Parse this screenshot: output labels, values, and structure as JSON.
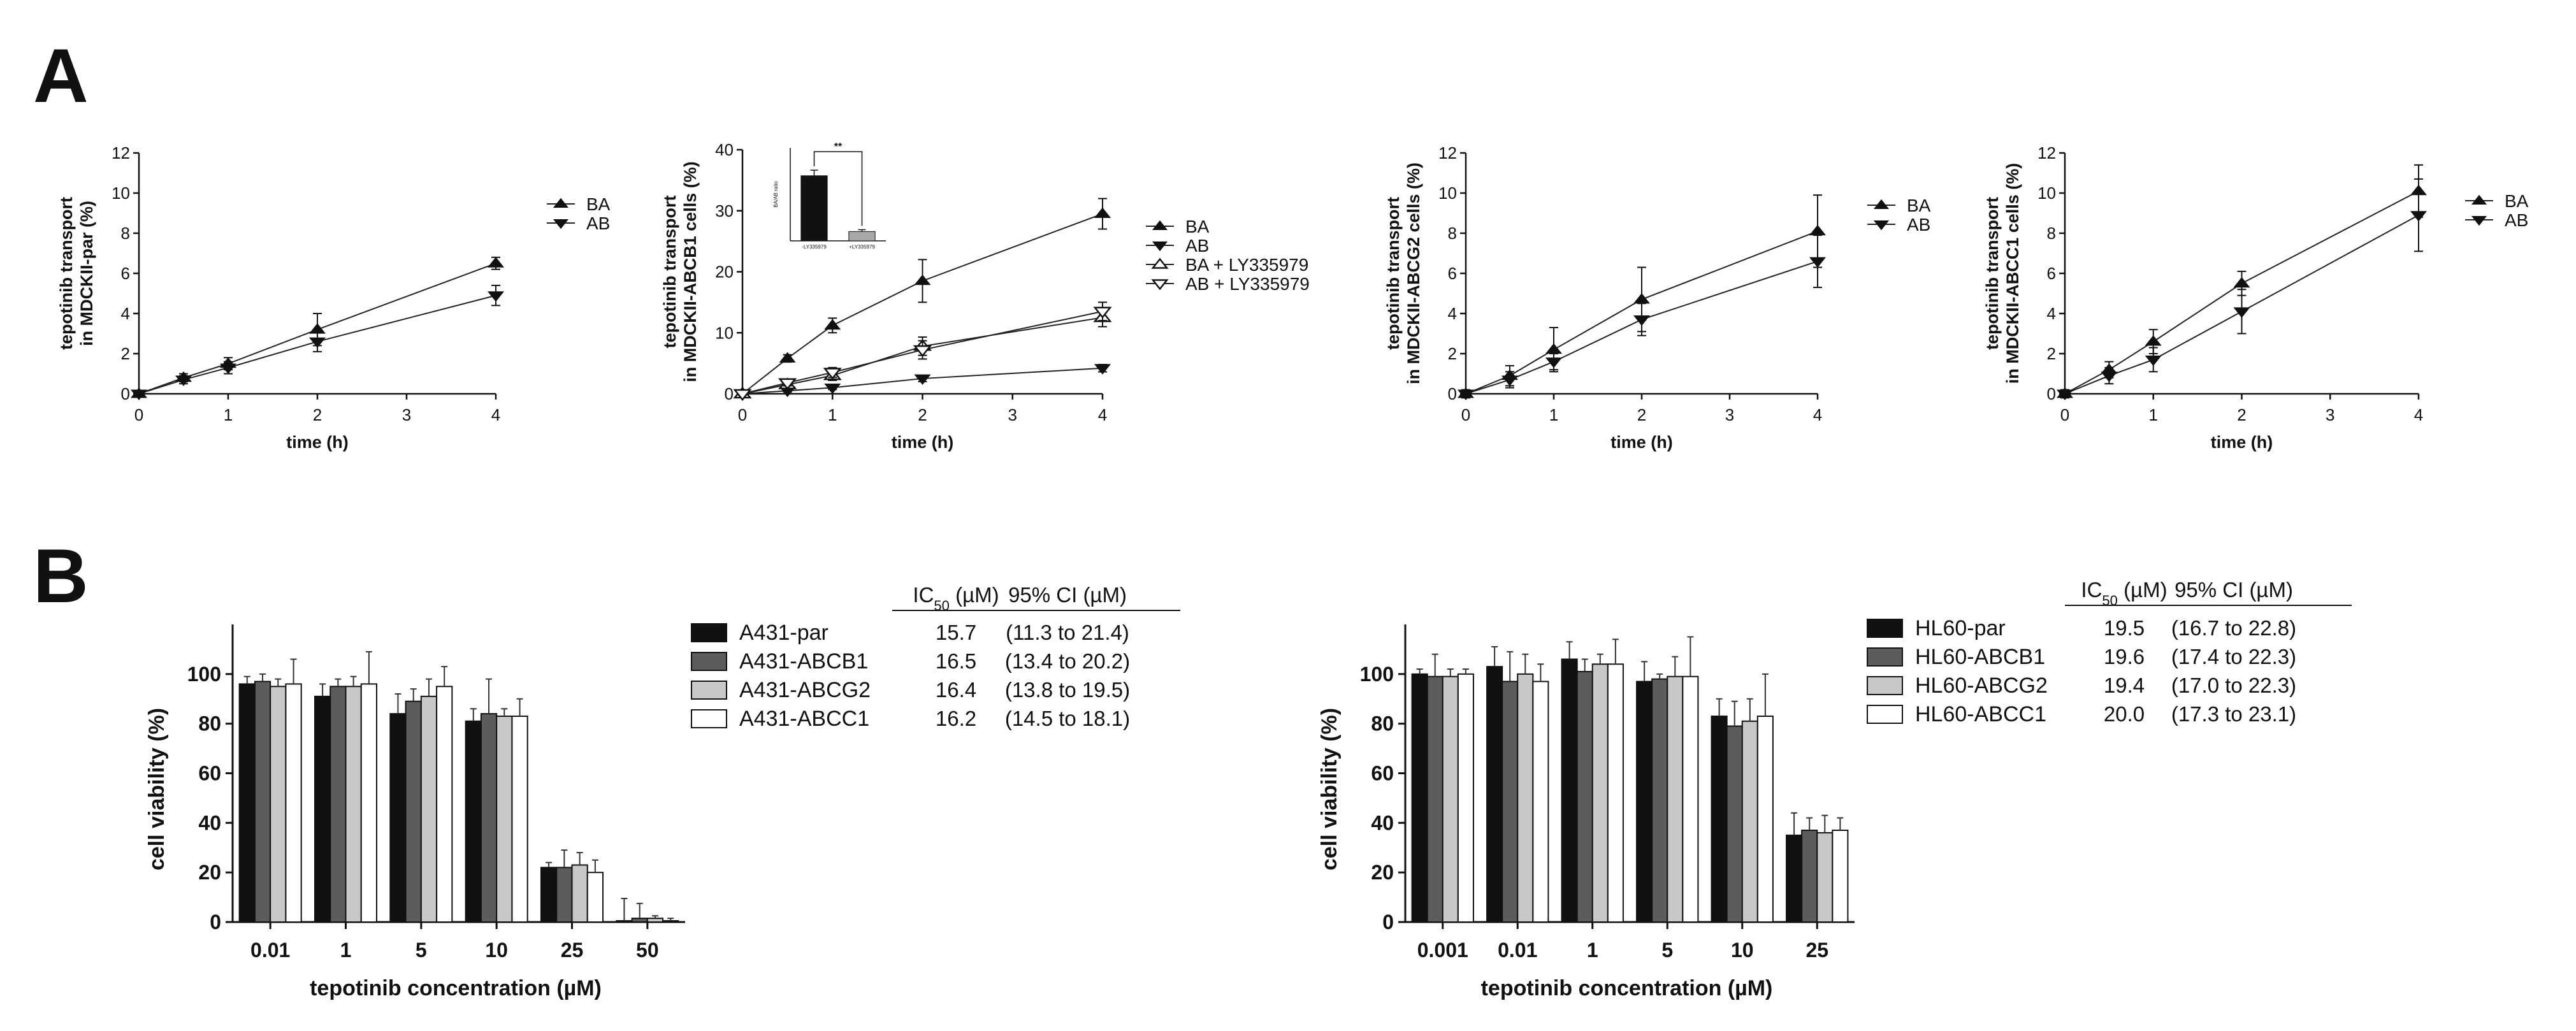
{
  "panels": {
    "a": "A",
    "b": "B"
  },
  "transport": [
    {
      "ylabel": [
        "tepotinib transport",
        "in MDCKII-par (%)"
      ],
      "xlabel": "time (h)",
      "ylim": [
        0,
        12
      ],
      "yticks": [
        "0",
        "2",
        "4",
        "6",
        "8",
        "10",
        "12"
      ],
      "xlim": [
        0,
        4
      ],
      "xticks": [
        "0",
        "1",
        "2",
        "3",
        "4"
      ],
      "x": [
        0,
        0.5,
        1,
        2,
        4
      ],
      "series": [
        {
          "name": "BA",
          "marker": "tri-up",
          "values": [
            0,
            0.8,
            1.5,
            3.2,
            6.5
          ],
          "err": [
            0.1,
            0.2,
            0.3,
            0.8,
            0.3
          ]
        },
        {
          "name": "AB",
          "marker": "tri-down",
          "values": [
            0,
            0.7,
            1.3,
            2.6,
            4.9
          ],
          "err": [
            0.1,
            0.2,
            0.3,
            0.5,
            0.5
          ]
        }
      ]
    },
    {
      "ylabel": [
        "tepotinib transport",
        "in MDCKII-ABCB1 cells (%)"
      ],
      "xlabel": "time (h)",
      "ylim": [
        0,
        40
      ],
      "yticks": [
        "0",
        "10",
        "20",
        "30",
        "40"
      ],
      "xlim": [
        0,
        4
      ],
      "xticks": [
        "0",
        "1",
        "2",
        "3",
        "4"
      ],
      "x": [
        0,
        0.5,
        1,
        2,
        4
      ],
      "series": [
        {
          "name": "BA",
          "marker": "tri-up",
          "values": [
            0,
            5.8,
            11.2,
            18.5,
            29.5
          ],
          "err": [
            0.3,
            0.6,
            1.2,
            3.5,
            2.5
          ]
        },
        {
          "name": "AB",
          "marker": "tri-down",
          "values": [
            0,
            0.5,
            1.0,
            2.5,
            4.2
          ],
          "err": [
            0.1,
            0.2,
            0.3,
            0.5,
            0.6
          ]
        },
        {
          "name": "BA + LY335979",
          "marker": "tri-up-open",
          "values": [
            0,
            1.5,
            3.0,
            7.8,
            12.5
          ],
          "err": [
            0.2,
            0.5,
            0.8,
            1.5,
            1.5
          ]
        },
        {
          "name": "AB + LY335979",
          "marker": "tri-down-open",
          "values": [
            0,
            1.8,
            3.5,
            7.2,
            13.5
          ],
          "err": [
            0.2,
            0.5,
            0.8,
            1.5,
            1.5
          ]
        }
      ],
      "inset": {
        "ylabel": "BA/AB ratio",
        "ylim": [
          0,
          10
        ],
        "categories": [
          "-LY335979",
          "+LY335979"
        ],
        "values": [
          7.0,
          1.0
        ],
        "err": [
          0.6,
          0.2
        ],
        "colors": [
          "#111111",
          "#a8a8a8"
        ],
        "significance": "**"
      }
    },
    {
      "ylabel": [
        "tepotinib transport",
        "in MDCKII-ABCG2 cells (%)"
      ],
      "xlabel": "time (h)",
      "ylim": [
        0,
        12
      ],
      "yticks": [
        "0",
        "2",
        "4",
        "6",
        "8",
        "10",
        "12"
      ],
      "xlim": [
        0,
        4
      ],
      "xticks": [
        "0",
        "1",
        "2",
        "3",
        "4"
      ],
      "x": [
        0,
        0.5,
        1,
        2,
        4
      ],
      "series": [
        {
          "name": "BA",
          "marker": "tri-up",
          "values": [
            0,
            0.9,
            2.2,
            4.7,
            8.1
          ],
          "err": [
            0.2,
            0.5,
            1.1,
            1.6,
            1.8
          ]
        },
        {
          "name": "AB",
          "marker": "tri-down",
          "values": [
            0,
            0.7,
            1.6,
            3.7,
            6.6
          ],
          "err": [
            0.2,
            0.4,
            0.4,
            0.8,
            1.3
          ]
        }
      ]
    },
    {
      "ylabel": [
        "tepotinib transport",
        "in MDCKII-ABCC1 cells (%)"
      ],
      "xlabel": "time (h)",
      "ylim": [
        0,
        12
      ],
      "yticks": [
        "0",
        "2",
        "4",
        "6",
        "8",
        "10",
        "12"
      ],
      "xlim": [
        0,
        4
      ],
      "xticks": [
        "0",
        "1",
        "2",
        "3",
        "4"
      ],
      "x": [
        0,
        0.5,
        1,
        2,
        4
      ],
      "series": [
        {
          "name": "BA",
          "marker": "tri-up",
          "values": [
            0,
            1.2,
            2.6,
            5.5,
            10.1
          ],
          "err": [
            0.2,
            0.4,
            0.6,
            0.6,
            1.3
          ]
        },
        {
          "name": "AB",
          "marker": "tri-down",
          "values": [
            0,
            0.9,
            1.7,
            4.1,
            8.9
          ],
          "err": [
            0.2,
            0.4,
            0.6,
            1.1,
            1.8
          ]
        }
      ]
    }
  ],
  "viability": [
    {
      "ylabel": "cell viability (%)",
      "xlabel": "tepotinib concentration (µM)",
      "ylim": [
        0,
        120
      ],
      "yticks": [
        "0",
        "20",
        "40",
        "60",
        "80",
        "100"
      ],
      "categories": [
        "0.01",
        "1",
        "5",
        "10",
        "25",
        "50"
      ],
      "series": [
        {
          "name": "A431-par",
          "color": "#111111",
          "values": [
            96,
            91,
            84,
            81,
            22,
            0.5
          ],
          "err": [
            3,
            5,
            8,
            5,
            2,
            9
          ]
        },
        {
          "name": "A431-ABCB1",
          "color": "#5c5c5c",
          "values": [
            97,
            95,
            89,
            84,
            22,
            1.5
          ],
          "err": [
            3,
            3,
            5,
            14,
            7,
            6
          ]
        },
        {
          "name": "A431-ABCG2",
          "color": "#c8c8c8",
          "values": [
            95,
            95,
            91,
            83,
            23,
            1.5
          ],
          "err": [
            3,
            4,
            7,
            3,
            5,
            1
          ]
        },
        {
          "name": "A431-ABCC1",
          "color": "#ffffff",
          "values": [
            96,
            96,
            95,
            83,
            20,
            0.5
          ],
          "err": [
            10,
            13,
            8,
            7,
            5,
            1
          ]
        }
      ],
      "table": {
        "header_ic": "IC",
        "header_sub": "50",
        "header_unit": " (µM)",
        "header_ci": "95% CI (µM)",
        "ic50": [
          "15.7",
          "16.5",
          "16.4",
          "16.2"
        ],
        "ci": [
          "(11.3 to 21.4)",
          "(13.4 to 20.2)",
          "(13.8 to 19.5)",
          "(14.5 to 18.1)"
        ]
      }
    },
    {
      "ylabel": "cell viability (%)",
      "xlabel": "tepotinib concentration (µM)",
      "ylim": [
        0,
        120
      ],
      "yticks": [
        "0",
        "20",
        "40",
        "60",
        "80",
        "100"
      ],
      "categories": [
        "0.001",
        "0.01",
        "1",
        "5",
        "10",
        "25"
      ],
      "series": [
        {
          "name": "HL60-par",
          "color": "#111111",
          "values": [
            100,
            103,
            106,
            97,
            83,
            35
          ],
          "err": [
            2,
            8,
            7,
            8,
            7,
            9
          ]
        },
        {
          "name": "HL60-ABCB1",
          "color": "#5c5c5c",
          "values": [
            99,
            97,
            101,
            98,
            79,
            37
          ],
          "err": [
            9,
            12,
            5,
            2,
            10,
            5
          ]
        },
        {
          "name": "HL60-ABCG2",
          "color": "#c8c8c8",
          "values": [
            99,
            100,
            104,
            99,
            81,
            36
          ],
          "err": [
            3,
            8,
            4,
            8,
            9,
            7
          ]
        },
        {
          "name": "HL60-ABCC1",
          "color": "#ffffff",
          "values": [
            100,
            97,
            104,
            99,
            83,
            37
          ],
          "err": [
            2,
            7,
            10,
            16,
            17,
            5
          ]
        }
      ],
      "table": {
        "header_ic": "IC",
        "header_sub": "50",
        "header_unit": " (µM)",
        "header_ci": "95% CI (µM)",
        "ic50": [
          "19.5",
          "19.6",
          "19.4",
          "20.0"
        ],
        "ci": [
          "(16.7 to 22.8)",
          "(17.4 to 22.3)",
          "(17.0 to 22.3)",
          "(17.3 to 23.1)"
        ]
      }
    }
  ],
  "chart_data": [
    {
      "type": "line",
      "title": "",
      "x": [
        0,
        0.5,
        1,
        2,
        4
      ],
      "xlabel": "time (h)",
      "ylabel": "tepotinib transport in MDCKII-par (%)",
      "ylim": [
        0,
        12
      ],
      "series": [
        {
          "name": "BA",
          "values": [
            0,
            0.8,
            1.5,
            3.2,
            6.5
          ]
        },
        {
          "name": "AB",
          "values": [
            0,
            0.7,
            1.3,
            2.6,
            4.9
          ]
        }
      ]
    },
    {
      "type": "line",
      "title": "",
      "x": [
        0,
        0.5,
        1,
        2,
        4
      ],
      "xlabel": "time (h)",
      "ylabel": "tepotinib transport in MDCKII-ABCB1 cells (%)",
      "ylim": [
        0,
        40
      ],
      "series": [
        {
          "name": "BA",
          "values": [
            0,
            5.8,
            11.2,
            18.5,
            29.5
          ]
        },
        {
          "name": "AB",
          "values": [
            0,
            0.5,
            1.0,
            2.5,
            4.2
          ]
        },
        {
          "name": "BA + LY335979",
          "values": [
            0,
            1.5,
            3.0,
            7.8,
            12.5
          ]
        },
        {
          "name": "AB + LY335979",
          "values": [
            0,
            1.8,
            3.5,
            7.2,
            13.5
          ]
        }
      ]
    },
    {
      "type": "bar",
      "title": "inset",
      "categories": [
        "-LY335979",
        "+LY335979"
      ],
      "values": [
        7.0,
        1.0
      ],
      "ylabel": "BA/AB ratio",
      "ylim": [
        0,
        10
      ]
    },
    {
      "type": "line",
      "title": "",
      "x": [
        0,
        0.5,
        1,
        2,
        4
      ],
      "xlabel": "time (h)",
      "ylabel": "tepotinib transport in MDCKII-ABCG2 cells (%)",
      "ylim": [
        0,
        12
      ],
      "series": [
        {
          "name": "BA",
          "values": [
            0,
            0.9,
            2.2,
            4.7,
            8.1
          ]
        },
        {
          "name": "AB",
          "values": [
            0,
            0.7,
            1.6,
            3.7,
            6.6
          ]
        }
      ]
    },
    {
      "type": "line",
      "title": "",
      "x": [
        0,
        0.5,
        1,
        2,
        4
      ],
      "xlabel": "time (h)",
      "ylabel": "tepotinib transport in MDCKII-ABCC1 cells (%)",
      "ylim": [
        0,
        12
      ],
      "series": [
        {
          "name": "BA",
          "values": [
            0,
            1.2,
            2.6,
            5.5,
            10.1
          ]
        },
        {
          "name": "AB",
          "values": [
            0,
            0.9,
            1.7,
            4.1,
            8.9
          ]
        }
      ]
    },
    {
      "type": "bar",
      "title": "",
      "categories": [
        "0.01",
        "1",
        "5",
        "10",
        "25",
        "50"
      ],
      "xlabel": "tepotinib concentration (µM)",
      "ylabel": "cell viability (%)",
      "ylim": [
        0,
        120
      ],
      "series": [
        {
          "name": "A431-par",
          "values": [
            96,
            91,
            84,
            81,
            22,
            0.5
          ]
        },
        {
          "name": "A431-ABCB1",
          "values": [
            97,
            95,
            89,
            84,
            22,
            1.5
          ]
        },
        {
          "name": "A431-ABCG2",
          "values": [
            95,
            95,
            91,
            83,
            23,
            1.5
          ]
        },
        {
          "name": "A431-ABCC1",
          "values": [
            96,
            96,
            95,
            83,
            20,
            0.5
          ]
        }
      ]
    },
    {
      "type": "bar",
      "title": "",
      "categories": [
        "0.001",
        "0.01",
        "1",
        "5",
        "10",
        "25"
      ],
      "xlabel": "tepotinib concentration (µM)",
      "ylabel": "cell viability (%)",
      "ylim": [
        0,
        120
      ],
      "series": [
        {
          "name": "HL60-par",
          "values": [
            100,
            103,
            106,
            97,
            83,
            35
          ]
        },
        {
          "name": "HL60-ABCB1",
          "values": [
            99,
            97,
            101,
            98,
            79,
            37
          ]
        },
        {
          "name": "HL60-ABCG2",
          "values": [
            99,
            100,
            104,
            99,
            81,
            36
          ]
        },
        {
          "name": "HL60-ABCC1",
          "values": [
            100,
            97,
            104,
            99,
            83,
            37
          ]
        }
      ]
    }
  ]
}
